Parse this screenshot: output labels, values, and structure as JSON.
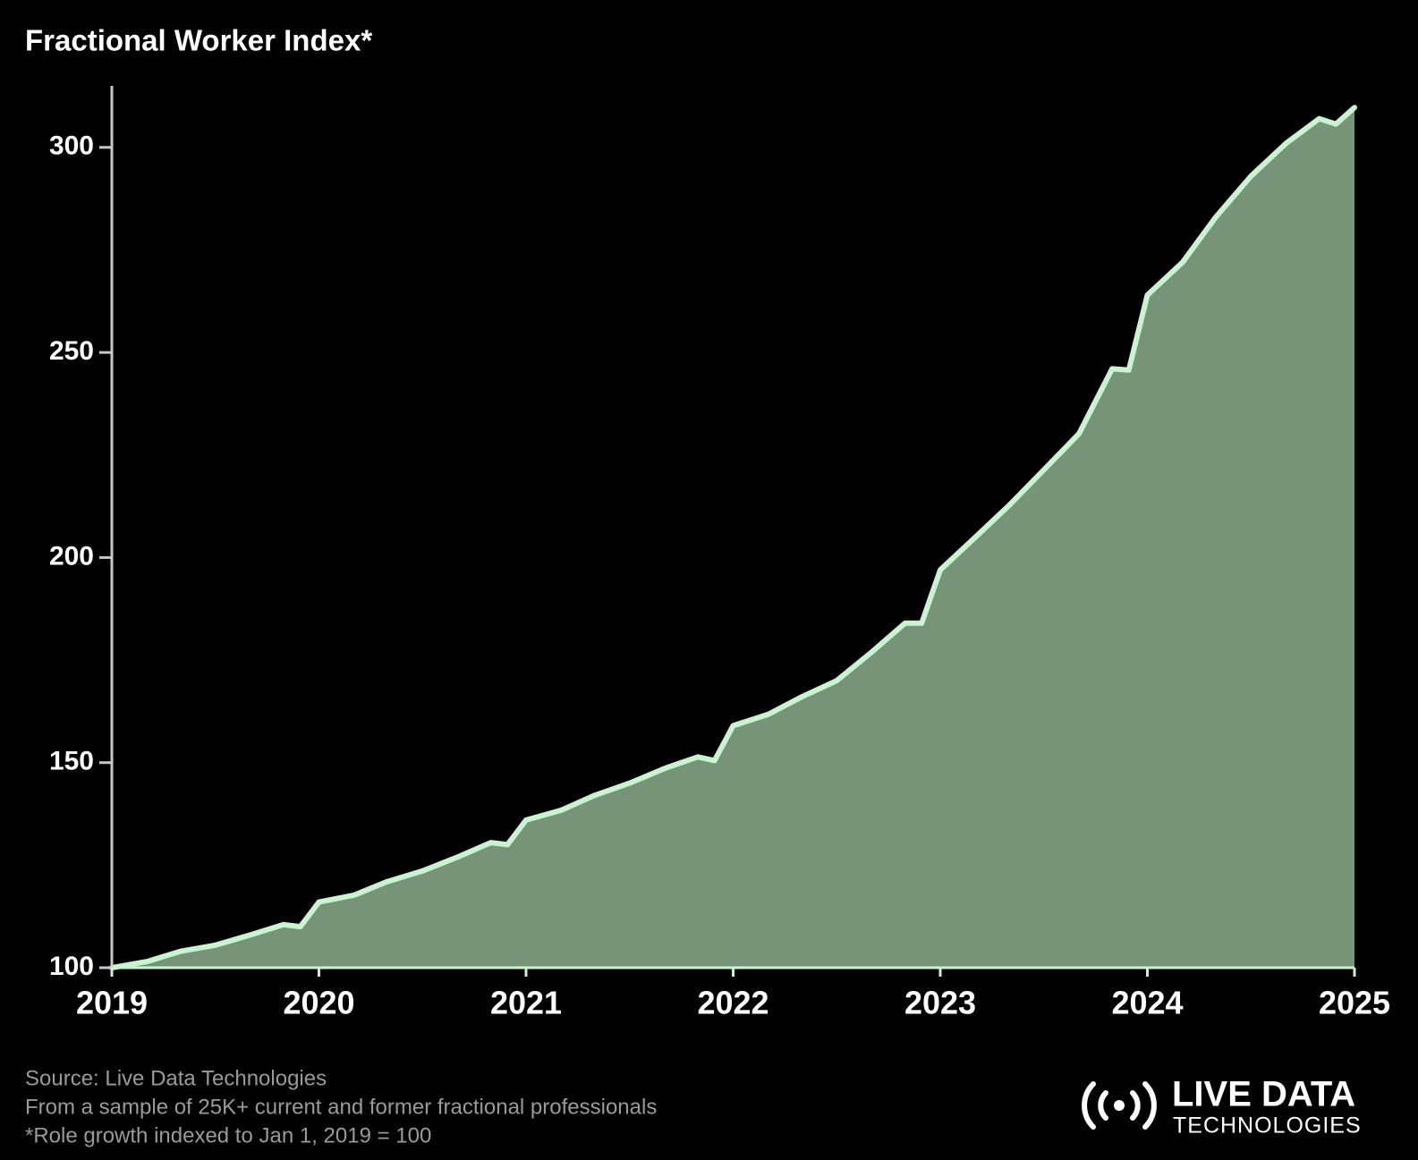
{
  "chart_data": {
    "type": "area",
    "title": "Fractional Worker Index*",
    "x": [
      2019,
      2019.17,
      2019.33,
      2019.5,
      2019.67,
      2019.83,
      2019.91,
      2020,
      2020.17,
      2020.33,
      2020.5,
      2020.67,
      2020.83,
      2020.91,
      2021,
      2021.17,
      2021.33,
      2021.5,
      2021.67,
      2021.83,
      2021.91,
      2022,
      2022.17,
      2022.33,
      2022.5,
      2022.67,
      2022.83,
      2022.91,
      2023,
      2023.17,
      2023.33,
      2023.5,
      2023.67,
      2023.83,
      2023.91,
      2024,
      2024.17,
      2024.33,
      2024.5,
      2024.67,
      2024.83,
      2024.91,
      2025
    ],
    "series": [
      {
        "name": "Fractional Worker Index",
        "color": "#c8f5cf",
        "fill": "#779479",
        "values": [
          100,
          101.5,
          104,
          105.5,
          108,
          110.5,
          110,
          116,
          117.7,
          121,
          123.6,
          127,
          130.5,
          130,
          136,
          138.4,
          142,
          145,
          148.6,
          151.4,
          150.5,
          159,
          161.8,
          166,
          170,
          177,
          184,
          184,
          197,
          205,
          212.6,
          221.4,
          230.2,
          246,
          245.7,
          264,
          272,
          283,
          293,
          301,
          307,
          305.7,
          309.7
        ]
      }
    ],
    "xlim": [
      2019,
      2025
    ],
    "xticks": [
      2019,
      2020,
      2021,
      2022,
      2023,
      2024,
      2025
    ],
    "ylim": [
      100,
      315
    ],
    "yticks": [
      100,
      150,
      200,
      250,
      300
    ],
    "footer": [
      "Source: Live Data Technologies",
      "From a sample of 25K+ current and former fractional professionals",
      "*Role growth indexed to Jan 1, 2019 = 100"
    ],
    "logo": {
      "line1": "LIVE DATA",
      "line2": "TECHNOLOGIES"
    }
  }
}
